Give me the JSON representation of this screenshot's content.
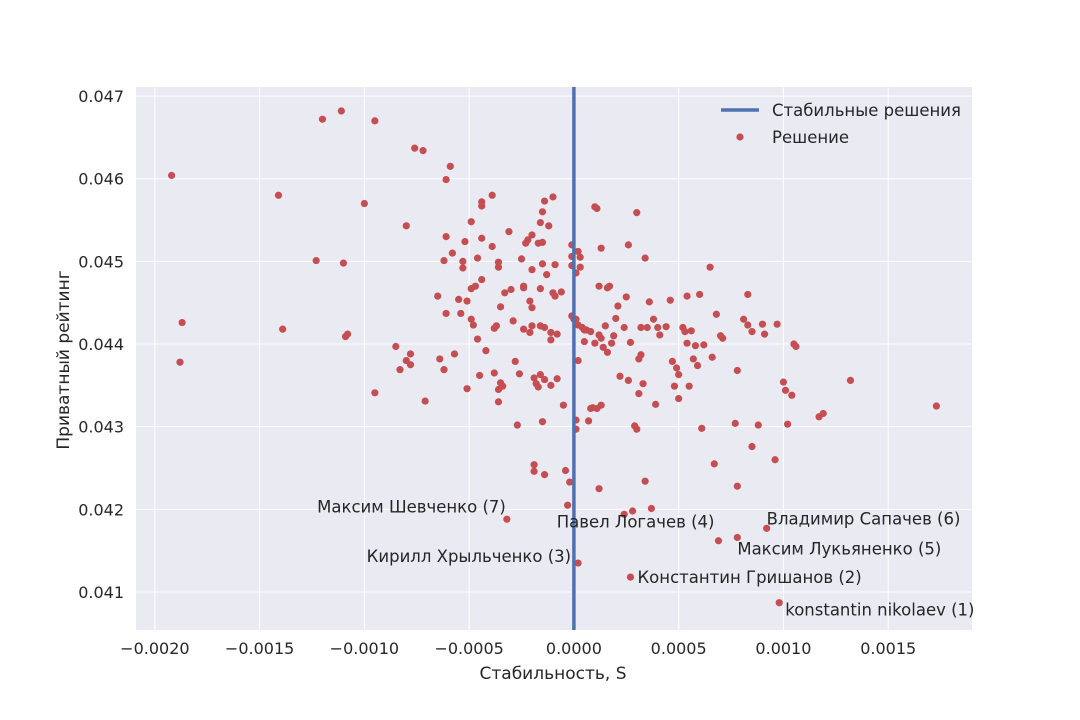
{
  "chart_data": {
    "type": "scatter",
    "title": "",
    "xlabel": "Стабильность, S",
    "ylabel": "Приватный рейтинг",
    "xlim": [
      -0.00209,
      0.0019
    ],
    "ylim": [
      0.04054,
      0.04711
    ],
    "xticks": [
      -0.002,
      -0.0015,
      -0.001,
      -0.0005,
      0.0,
      0.0005,
      0.001,
      0.0015
    ],
    "xtick_labels": [
      "−0.0020",
      "−0.0015",
      "−0.0010",
      "−0.0005",
      "0.0000",
      "0.0005",
      "0.0010",
      "0.0015"
    ],
    "yticks": [
      0.041,
      0.042,
      0.043,
      0.044,
      0.045,
      0.046,
      0.047
    ],
    "ytick_labels": [
      "0.041",
      "0.042",
      "0.043",
      "0.044",
      "0.045",
      "0.046",
      "0.047"
    ],
    "grid": true,
    "legend_position": "top-right",
    "colors": {
      "plot_bg": "#eaeaf2",
      "grid": "#ffffff",
      "points": "#c44e52",
      "vline": "#4c72b0"
    },
    "vline": {
      "name": "Стабильные решения",
      "x": 0.0
    },
    "series": [
      {
        "name": "Решение",
        "points": [
          [
            -0.00192,
            0.04604
          ],
          [
            -0.00187,
            0.04426
          ],
          [
            -0.00188,
            0.04378
          ],
          [
            -0.00141,
            0.0458
          ],
          [
            -0.00139,
            0.04418
          ],
          [
            -0.00123,
            0.04501
          ],
          [
            -0.0012,
            0.04672
          ],
          [
            -0.00111,
            0.04682
          ],
          [
            -0.0011,
            0.04498
          ],
          [
            -0.00109,
            0.04409
          ],
          [
            -0.00108,
            0.04412
          ],
          [
            -0.001,
            0.0457
          ],
          [
            -0.00095,
            0.0467
          ],
          [
            -0.00095,
            0.04341
          ],
          [
            -0.00085,
            0.04397
          ],
          [
            -0.00083,
            0.04369
          ],
          [
            -0.0008,
            0.04543
          ],
          [
            -0.0008,
            0.0438
          ],
          [
            -0.00078,
            0.04388
          ],
          [
            -0.00078,
            0.04375
          ],
          [
            -0.00076,
            0.04637
          ],
          [
            -0.00072,
            0.04634
          ],
          [
            -0.00071,
            0.04331
          ],
          [
            -0.00065,
            0.04458
          ],
          [
            -0.00064,
            0.04382
          ],
          [
            -0.00062,
            0.04501
          ],
          [
            -0.00062,
            0.04369
          ],
          [
            -0.00061,
            0.0453
          ],
          [
            -0.00061,
            0.04599
          ],
          [
            -0.00061,
            0.04437
          ],
          [
            -0.00059,
            0.04615
          ],
          [
            -0.00058,
            0.0451
          ],
          [
            -0.00057,
            0.04388
          ],
          [
            -0.00055,
            0.04454
          ],
          [
            -0.00054,
            0.04437
          ],
          [
            -0.00053,
            0.045
          ],
          [
            -0.00053,
            0.04492
          ],
          [
            -0.00052,
            0.04524
          ],
          [
            -0.00051,
            0.04452
          ],
          [
            -0.00051,
            0.04346
          ],
          [
            -0.00049,
            0.04548
          ],
          [
            -0.00049,
            0.04467
          ],
          [
            -0.00049,
            0.0443
          ],
          [
            -0.00048,
            0.04423
          ],
          [
            -0.00047,
            0.0447
          ],
          [
            -0.00046,
            0.04504
          ],
          [
            -0.00046,
            0.04406
          ],
          [
            -0.00045,
            0.04362
          ],
          [
            -0.00044,
            0.04572
          ],
          [
            -0.00044,
            0.04567
          ],
          [
            -0.00044,
            0.04528
          ],
          [
            -0.00044,
            0.04478
          ],
          [
            -0.00042,
            0.04392
          ],
          [
            -0.00039,
            0.0458
          ],
          [
            -0.00039,
            0.04518
          ],
          [
            -0.00038,
            0.04419
          ],
          [
            -0.00038,
            0.04365
          ],
          [
            -0.00037,
            0.04422
          ],
          [
            -0.00036,
            0.04499
          ],
          [
            -0.00036,
            0.04493
          ],
          [
            -0.00036,
            0.04345
          ],
          [
            -0.00036,
            0.0433
          ],
          [
            -0.00035,
            0.04445
          ],
          [
            -0.00035,
            0.04353
          ],
          [
            -0.00034,
            0.04349
          ],
          [
            -0.00033,
            0.04462
          ],
          [
            -0.00032,
            0.04188
          ],
          [
            -0.00031,
            0.04536
          ],
          [
            -0.0003,
            0.04466
          ],
          [
            -0.00029,
            0.04428
          ],
          [
            -0.00028,
            0.04379
          ],
          [
            -0.00027,
            0.04302
          ],
          [
            -0.00026,
            0.04364
          ],
          [
            -0.00025,
            0.04503
          ],
          [
            -0.00024,
            0.04468
          ],
          [
            -0.00024,
            0.0447
          ],
          [
            -0.00024,
            0.04418
          ],
          [
            -0.00023,
            0.04522
          ],
          [
            -0.00022,
            0.04526
          ],
          [
            -0.00021,
            0.04452
          ],
          [
            -0.00021,
            0.04414
          ],
          [
            -0.0002,
            0.04532
          ],
          [
            -0.0002,
            0.0449
          ],
          [
            -0.0002,
            0.04444
          ],
          [
            -0.0002,
            0.04422
          ],
          [
            -0.00019,
            0.04359
          ],
          [
            -0.00019,
            0.04254
          ],
          [
            -0.00019,
            0.04246
          ],
          [
            -0.00018,
            0.04352
          ],
          [
            -0.00017,
            0.04522
          ],
          [
            -0.00017,
            0.04348
          ],
          [
            -0.00016,
            0.04547
          ],
          [
            -0.00016,
            0.04467
          ],
          [
            -0.00016,
            0.04422
          ],
          [
            -0.00016,
            0.04363
          ],
          [
            -0.00015,
            0.0456
          ],
          [
            -0.00015,
            0.04523
          ],
          [
            -0.00015,
            0.04497
          ],
          [
            -0.00015,
            0.04306
          ],
          [
            -0.00014,
            0.04573
          ],
          [
            -0.00014,
            0.0442
          ],
          [
            -0.00014,
            0.04357
          ],
          [
            -0.00014,
            0.04242
          ],
          [
            -0.00013,
            0.04484
          ],
          [
            -0.00012,
            0.04543
          ],
          [
            -0.00011,
            0.04414
          ],
          [
            -0.00011,
            0.04405
          ],
          [
            -0.00011,
            0.0435
          ],
          [
            -0.0001,
            0.04578
          ],
          [
            -0.0001,
            0.04462
          ],
          [
            -9e-05,
            0.04458
          ],
          [
            -9e-05,
            0.04496
          ],
          [
            -8e-05,
            0.04412
          ],
          [
            -8e-05,
            0.04358
          ],
          [
            -6e-05,
            0.04463
          ],
          [
            -5e-05,
            0.04326
          ],
          [
            -4e-05,
            0.04247
          ],
          [
            -3e-05,
            0.04205
          ],
          [
            -2e-05,
            0.04233
          ],
          [
            -1e-05,
            0.04506
          ],
          [
            -1e-05,
            0.0452
          ],
          [
            -1e-05,
            0.04495
          ],
          [
            -1e-05,
            0.04434
          ],
          [
            0.0,
            0.0443
          ],
          [
            1e-05,
            0.0443
          ],
          [
            1e-05,
            0.04486
          ],
          [
            1e-05,
            0.04297
          ],
          [
            1e-05,
            0.04308
          ],
          [
            2e-05,
            0.04512
          ],
          [
            2e-05,
            0.04135
          ],
          [
            2e-05,
            0.04423
          ],
          [
            2e-05,
            0.0438
          ],
          [
            3e-05,
            0.04505
          ],
          [
            3e-05,
            0.04493
          ],
          [
            4e-05,
            0.0442
          ],
          [
            5e-05,
            0.04417
          ],
          [
            5e-05,
            0.04403
          ],
          [
            6e-05,
            0.04417
          ],
          [
            7e-05,
            0.04307
          ],
          [
            8e-05,
            0.04415
          ],
          [
            8e-05,
            0.04322
          ],
          [
            9e-05,
            0.04323
          ],
          [
            0.0001,
            0.04566
          ],
          [
            0.0001,
            0.04401
          ],
          [
            0.00011,
            0.04564
          ],
          [
            0.00011,
            0.04322
          ],
          [
            0.00012,
            0.0447
          ],
          [
            0.00012,
            0.04411
          ],
          [
            0.00012,
            0.04225
          ],
          [
            0.00013,
            0.04516
          ],
          [
            0.00013,
            0.04407
          ],
          [
            0.00013,
            0.04326
          ],
          [
            0.00014,
            0.04396
          ],
          [
            0.00015,
            0.04422
          ],
          [
            0.00016,
            0.04468
          ],
          [
            0.00016,
            0.0439
          ],
          [
            0.00017,
            0.0447
          ],
          [
            0.00018,
            0.04401
          ],
          [
            0.00019,
            0.0441
          ],
          [
            0.0002,
            0.04431
          ],
          [
            0.00021,
            0.04446
          ],
          [
            0.00022,
            0.04361
          ],
          [
            0.00024,
            0.0442
          ],
          [
            0.00024,
            0.04194
          ],
          [
            0.00025,
            0.04457
          ],
          [
            0.00026,
            0.0452
          ],
          [
            0.00026,
            0.04356
          ],
          [
            0.00027,
            0.04402
          ],
          [
            0.00027,
            0.04118
          ],
          [
            0.00028,
            0.04198
          ],
          [
            0.00029,
            0.04301
          ],
          [
            0.0003,
            0.04559
          ],
          [
            0.0003,
            0.04297
          ],
          [
            0.00031,
            0.04382
          ],
          [
            0.00031,
            0.0434
          ],
          [
            0.00032,
            0.0442
          ],
          [
            0.00032,
            0.04387
          ],
          [
            0.00033,
            0.04352
          ],
          [
            0.00034,
            0.04504
          ],
          [
            0.00034,
            0.04234
          ],
          [
            0.00035,
            0.0442
          ],
          [
            0.00036,
            0.04451
          ],
          [
            0.00037,
            0.04201
          ],
          [
            0.00038,
            0.0443
          ],
          [
            0.00039,
            0.04327
          ],
          [
            0.0004,
            0.0442
          ],
          [
            0.00041,
            0.04411
          ],
          [
            0.00044,
            0.04421
          ],
          [
            0.00046,
            0.04453
          ],
          [
            0.00047,
            0.04379
          ],
          [
            0.00048,
            0.04349
          ],
          [
            0.00049,
            0.04371
          ],
          [
            0.0005,
            0.04363
          ],
          [
            0.0005,
            0.04334
          ],
          [
            0.00052,
            0.0442
          ],
          [
            0.00053,
            0.04415
          ],
          [
            0.00054,
            0.04401
          ],
          [
            0.00054,
            0.04458
          ],
          [
            0.00055,
            0.04349
          ],
          [
            0.00056,
            0.04416
          ],
          [
            0.00057,
            0.04382
          ],
          [
            0.00058,
            0.04398
          ],
          [
            0.00059,
            0.04374
          ],
          [
            0.0006,
            0.0446
          ],
          [
            0.00061,
            0.04298
          ],
          [
            0.00062,
            0.04399
          ],
          [
            0.00065,
            0.04493
          ],
          [
            0.00066,
            0.04384
          ],
          [
            0.00067,
            0.04255
          ],
          [
            0.00068,
            0.04436
          ],
          [
            0.00069,
            0.04162
          ],
          [
            0.0007,
            0.0441
          ],
          [
            0.00071,
            0.04407
          ],
          [
            0.00077,
            0.04304
          ],
          [
            0.00078,
            0.04368
          ],
          [
            0.00078,
            0.04228
          ],
          [
            0.00078,
            0.04166
          ],
          [
            0.00081,
            0.0443
          ],
          [
            0.00083,
            0.0446
          ],
          [
            0.00083,
            0.04423
          ],
          [
            0.00085,
            0.04415
          ],
          [
            0.00085,
            0.04276
          ],
          [
            0.00088,
            0.04302
          ],
          [
            0.0009,
            0.04424
          ],
          [
            0.00091,
            0.04412
          ],
          [
            0.00092,
            0.04177
          ],
          [
            0.00096,
            0.0426
          ],
          [
            0.00097,
            0.04424
          ],
          [
            0.00098,
            0.04087
          ],
          [
            0.001,
            0.04354
          ],
          [
            0.00101,
            0.04344
          ],
          [
            0.00102,
            0.04303
          ],
          [
            0.00104,
            0.04338
          ],
          [
            0.00105,
            0.044
          ],
          [
            0.00106,
            0.04397
          ],
          [
            0.00117,
            0.04312
          ],
          [
            0.00119,
            0.04316
          ],
          [
            0.00132,
            0.04356
          ],
          [
            0.00173,
            0.04325
          ]
        ]
      }
    ],
    "annotations": [
      {
        "text": "konstantin nikolaev (1)",
        "x": 0.00098,
        "y": 0.04087,
        "anchor": "start",
        "dx": 6,
        "dy": 13
      },
      {
        "text": "Константин Гришанов (2)",
        "x": 0.00027,
        "y": 0.04118,
        "anchor": "start",
        "dx": 7,
        "dy": 6
      },
      {
        "text": "Кирилл Хрыльченко (3)",
        "x": 2e-05,
        "y": 0.04135,
        "anchor": "end",
        "dx": -7,
        "dy": -1
      },
      {
        "text": "Павел Логачев (4)",
        "x": 0.00069,
        "y": 0.04162,
        "anchor": "end",
        "dx": -4,
        "dy": -13
      },
      {
        "text": "Максим Лукьяненко (5)",
        "x": 0.00078,
        "y": 0.04166,
        "anchor": "start",
        "dx": 0,
        "dy": 17
      },
      {
        "text": "Владимир Сапачев (6)",
        "x": 0.00092,
        "y": 0.04177,
        "anchor": "start",
        "dx": 0,
        "dy": -4
      },
      {
        "text": "Максим Шевченко (7)",
        "x": -0.00032,
        "y": 0.04188,
        "anchor": "end",
        "dx": -1,
        "dy": -7
      }
    ]
  },
  "legend": {
    "line_label": "Стабильные решения",
    "marker_label": "Решение"
  }
}
